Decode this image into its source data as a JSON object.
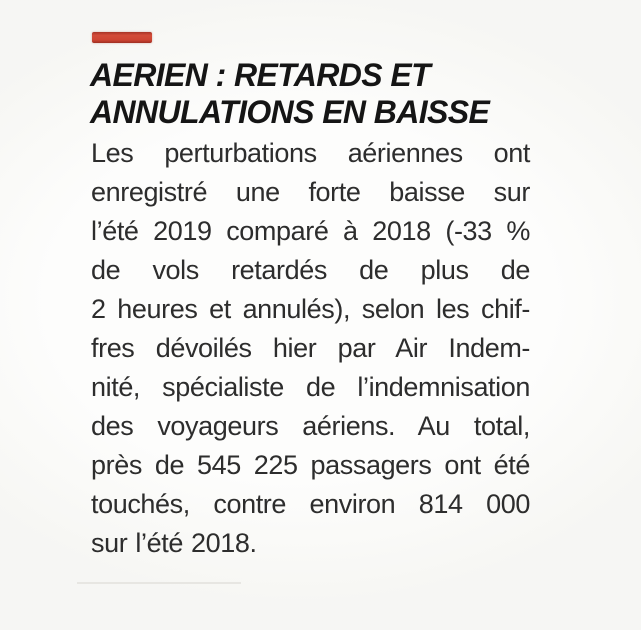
{
  "article": {
    "headline": "AERIEN : RETARDS ET ANNULATIONS EN BAISSE",
    "headline_lines": [
      "AERIEN : RETARDS ET",
      "ANNULATIONS EN BAISSE"
    ],
    "body_text": "Les perturbations aériennes ont enregistré une forte baisse sur l’été 2019 comparé à 2018 (-33 % de vols retardés de plus de 2 heures et annulés), selon les chiffres dévoilés hier par Air Indemnité, spécialiste de l’indemnisation des voyageurs aériens. Au total, près de 545 225 passagers ont été touchés, contre environ 814 000 sur l’été 2018.",
    "body_lines": [
      "Les perturbations aériennes ont",
      "enregistré une forte baisse sur",
      "l’été 2019 comparé à 2018 (-33 %",
      "de vols retardés de plus de",
      "2 heures et annulés), selon les chif-",
      "fres dévoilés hier par Air Indem-",
      "nité, spécialiste de l’indemnisation",
      "des voyageurs aériens. Au total,",
      "près de 545 225 passagers ont été",
      "touchés, contre environ 814 000",
      "sur l’été 2018."
    ],
    "stats": {
      "delay_change_vs_2018": "-33 %",
      "passengers_affected_2019": "545 225",
      "passengers_affected_2018": "814 000"
    }
  },
  "colors": {
    "accent_red": "#ce4432",
    "headline_text": "#151515",
    "body_text": "#2d2d2d",
    "background": "#fcfcfa",
    "faint_rule": "#e7e6e2"
  }
}
